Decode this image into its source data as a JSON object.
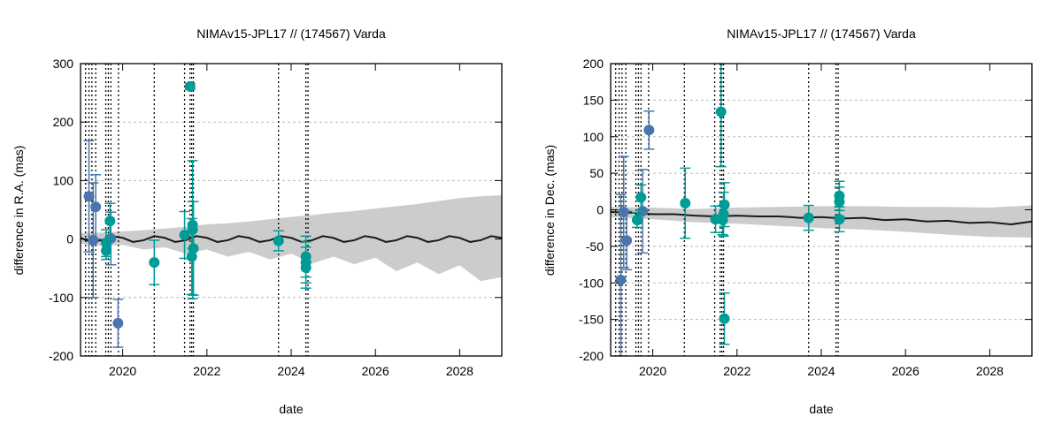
{
  "colors": {
    "blue": "#4a76ad",
    "teal": "#009b95",
    "band": "#cccccc",
    "line": "#1a1a1a"
  },
  "chart_data": [
    {
      "type": "scatter",
      "title": "NIMAv15-JPL17 // (174567) Varda",
      "xlabel": "date",
      "ylabel": "difference in R.A. (mas)",
      "xlim": [
        2019,
        2029
      ],
      "ylim": [
        -200,
        300
      ],
      "xticks": [
        2020,
        2022,
        2024,
        2026,
        2028
      ],
      "yticks": [
        -200,
        -100,
        0,
        100,
        200,
        300
      ],
      "grid": "horizontal dashed",
      "vlines": [
        2019.12,
        2019.2,
        2019.27,
        2019.36,
        2019.6,
        2019.66,
        2019.72,
        2019.9,
        2020.75,
        2021.47,
        2021.6,
        2021.64,
        2021.68,
        2023.7,
        2024.35,
        2024.4
      ],
      "band": {
        "x": [
          2019,
          2019.5,
          2020,
          2020.5,
          2021,
          2021.5,
          2022,
          2022.5,
          2023,
          2023.5,
          2024,
          2024.5,
          2025,
          2025.5,
          2026,
          2026.5,
          2027,
          2027.5,
          2028,
          2028.5,
          2029
        ],
        "upper": [
          10,
          11,
          13,
          15,
          18,
          21,
          25,
          27,
          30,
          34,
          38,
          41,
          45,
          48,
          52,
          56,
          60,
          65,
          70,
          73,
          75
        ],
        "lower": [
          -8,
          -12,
          -10,
          -18,
          -14,
          -25,
          -18,
          -30,
          -22,
          -35,
          -25,
          -42,
          -30,
          -43,
          -32,
          -55,
          -40,
          -60,
          -45,
          -72,
          -65
        ]
      },
      "model": {
        "x": [
          2019,
          2019.25,
          2019.5,
          2019.75,
          2020,
          2020.25,
          2020.5,
          2020.75,
          2021,
          2021.25,
          2021.5,
          2021.75,
          2022,
          2022.25,
          2022.5,
          2022.75,
          2023,
          2023.25,
          2023.5,
          2023.75,
          2024,
          2024.25,
          2024.5,
          2024.75,
          2025,
          2025.25,
          2025.5,
          2025.75,
          2026,
          2026.25,
          2026.5,
          2026.75,
          2027,
          2027.25,
          2027.5,
          2027.75,
          2028,
          2028.25,
          2028.5,
          2028.75,
          2029
        ],
        "y": [
          2,
          -5,
          -2,
          5,
          2,
          -5,
          -2,
          5,
          2,
          -5,
          -2,
          5,
          2,
          -5,
          -2,
          5,
          2,
          -5,
          -2,
          5,
          2,
          -5,
          -2,
          5,
          2,
          -5,
          -2,
          5,
          2,
          -5,
          -2,
          5,
          2,
          -5,
          -2,
          5,
          2,
          -5,
          -2,
          5,
          2
        ]
      },
      "series": [
        {
          "color": "blue",
          "points": [
            {
              "x": 2019.2,
              "y": 73,
              "err": 95
            },
            {
              "x": 2019.3,
              "y": -2,
              "err": 98
            },
            {
              "x": 2019.36,
              "y": 55,
              "err": 55
            },
            {
              "x": 2019.72,
              "y": 1,
              "err": 45
            },
            {
              "x": 2019.89,
              "y": -144,
              "err": 41
            }
          ]
        },
        {
          "color": "teal",
          "points": [
            {
              "x": 2019.7,
              "y": 31,
              "err": 30
            },
            {
              "x": 2019.61,
              "y": -7,
              "err": 23
            },
            {
              "x": 2019.61,
              "y": -20,
              "err": 15
            },
            {
              "x": 2020.75,
              "y": -40,
              "err": 38
            },
            {
              "x": 2021.47,
              "y": 7,
              "err": 40
            },
            {
              "x": 2021.6,
              "y": 261,
              "err": 5
            },
            {
              "x": 2021.66,
              "y": 24,
              "err": 40
            },
            {
              "x": 2021.66,
              "y": 16,
              "err": 118
            },
            {
              "x": 2021.68,
              "y": -16,
              "err": 80
            },
            {
              "x": 2021.64,
              "y": -30,
              "err": 65
            },
            {
              "x": 2023.7,
              "y": -3,
              "err": 17
            },
            {
              "x": 2024.35,
              "y": -30,
              "err": 35
            },
            {
              "x": 2024.35,
              "y": -40,
              "err": 35
            },
            {
              "x": 2024.35,
              "y": -49,
              "err": 35
            }
          ]
        }
      ]
    },
    {
      "type": "scatter",
      "title": "NIMAv15-JPL17 // (174567) Varda",
      "xlabel": "date",
      "ylabel": "difference in Dec. (mas)",
      "xlim": [
        2019,
        2029
      ],
      "ylim": [
        -200,
        200
      ],
      "xticks": [
        2020,
        2022,
        2024,
        2026,
        2028
      ],
      "yticks": [
        -200,
        -150,
        -100,
        -50,
        0,
        50,
        100,
        150,
        200
      ],
      "grid": "horizontal dashed",
      "vlines": [
        2019.12,
        2019.2,
        2019.27,
        2019.36,
        2019.6,
        2019.66,
        2019.72,
        2019.9,
        2020.75,
        2021.47,
        2021.6,
        2021.64,
        2021.68,
        2023.7,
        2024.35,
        2024.4
      ],
      "band": {
        "x": [
          2019,
          2020,
          2021,
          2022,
          2023,
          2024,
          2025,
          2026,
          2027,
          2028,
          2029
        ],
        "upper": [
          4,
          3,
          1,
          3,
          4,
          5,
          5,
          4,
          4,
          3,
          6
        ],
        "lower": [
          -10,
          -13,
          -17,
          -19,
          -22,
          -25,
          -27,
          -30,
          -34,
          -37,
          -38
        ]
      },
      "model": {
        "x": [
          2019,
          2019.5,
          2020,
          2020.5,
          2021,
          2021.5,
          2022,
          2022.5,
          2023,
          2023.5,
          2024,
          2024.5,
          2025,
          2025.5,
          2026,
          2026.5,
          2027,
          2027.5,
          2028,
          2028.5,
          2029
        ],
        "y": [
          -3,
          -4,
          -6,
          -6,
          -8,
          -9,
          -8,
          -9,
          -9,
          -11,
          -10,
          -12,
          -11,
          -14,
          -13,
          -16,
          -15,
          -18,
          -17,
          -20,
          -16
        ]
      },
      "series": [
        {
          "color": "blue",
          "points": [
            {
              "x": 2019.24,
              "y": -96,
              "err": 117
            },
            {
              "x": 2019.31,
              "y": -3,
              "err": 76
            },
            {
              "x": 2019.38,
              "y": -42,
              "err": 40
            },
            {
              "x": 2019.76,
              "y": -2,
              "err": 57
            },
            {
              "x": 2019.91,
              "y": 109,
              "err": 26
            }
          ]
        },
        {
          "color": "teal",
          "points": [
            {
              "x": 2019.72,
              "y": 17,
              "err": 17
            },
            {
              "x": 2019.63,
              "y": -14,
              "err": 10
            },
            {
              "x": 2020.77,
              "y": 9,
              "err": 48
            },
            {
              "x": 2021.49,
              "y": -13,
              "err": 18
            },
            {
              "x": 2021.62,
              "y": 134,
              "err": 75
            },
            {
              "x": 2021.7,
              "y": 7,
              "err": 30
            },
            {
              "x": 2021.68,
              "y": -6,
              "err": 30
            },
            {
              "x": 2021.66,
              "y": -14,
              "err": 20
            },
            {
              "x": 2021.7,
              "y": -149,
              "err": 35
            },
            {
              "x": 2023.7,
              "y": -11,
              "err": 17
            },
            {
              "x": 2024.43,
              "y": 19,
              "err": 20
            },
            {
              "x": 2024.43,
              "y": 11,
              "err": 20
            },
            {
              "x": 2024.43,
              "y": -13,
              "err": 17
            }
          ]
        }
      ]
    }
  ]
}
